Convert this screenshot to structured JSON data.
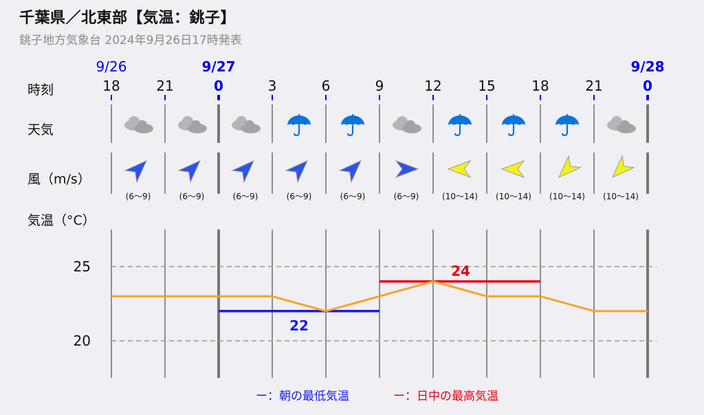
{
  "header": {
    "title": "千葉県／北東部【気温：銚子】",
    "subtitle": "銚子地方気象台 2024年9月26日17時発表"
  },
  "labels": {
    "time": "時刻",
    "weather": "天気",
    "wind": "風（m/s）",
    "temperature": "気温（°C）"
  },
  "legend": {
    "min_label": "ー：朝の最低気温",
    "max_label": "ー：日中の最高気温"
  },
  "colors": {
    "date_blue": "#0000ee",
    "line_orange": "#f5a623",
    "min_blue": "#1a1ae6",
    "max_red": "#e60012",
    "cloud_gray": "#b5b5b5",
    "umbrella_blue": "#0a74d9",
    "wind_blue": "#2d54e8",
    "wind_yellow": "#f2f21a"
  },
  "chart_data": {
    "type": "line",
    "ylim": [
      17.5,
      27.5
    ],
    "yticks": [
      20,
      25
    ],
    "dates": [
      {
        "label": "9/26",
        "hour_index": 0
      },
      {
        "label": "9/27",
        "hour_index": 2
      },
      {
        "label": "9/28",
        "hour_index": 10
      }
    ],
    "hours": [
      "18",
      "21",
      "0",
      "3",
      "6",
      "9",
      "12",
      "15",
      "18",
      "21",
      "0"
    ],
    "weather": [
      "cloud-icon",
      "cloud-icon",
      "cloud-icon",
      "umbrella-icon",
      "umbrella-icon",
      "cloud-icon",
      "umbrella-icon",
      "umbrella-icon",
      "umbrella-icon",
      "cloud-icon"
    ],
    "wind": [
      {
        "range": "(6〜9)",
        "color": "blue",
        "direction_deg": 45
      },
      {
        "range": "(6〜9)",
        "color": "blue",
        "direction_deg": 45
      },
      {
        "range": "(6〜9)",
        "color": "blue",
        "direction_deg": 45
      },
      {
        "range": "(6〜9)",
        "color": "blue",
        "direction_deg": 45
      },
      {
        "range": "(6〜9)",
        "color": "blue",
        "direction_deg": 45
      },
      {
        "range": "(6〜9)",
        "color": "blue",
        "direction_deg": 90
      },
      {
        "range": "(10〜14)",
        "color": "yellow",
        "direction_deg": 270
      },
      {
        "range": "(10〜14)",
        "color": "yellow",
        "direction_deg": 270
      },
      {
        "range": "(10〜14)",
        "color": "yellow",
        "direction_deg": 225
      },
      {
        "range": "(10〜14)",
        "color": "yellow",
        "direction_deg": 225
      }
    ],
    "temperature": [
      23,
      23,
      23,
      23,
      22,
      23,
      24,
      23,
      23,
      22,
      22
    ],
    "min_temp": {
      "value": 22,
      "label": "22",
      "from_index": 2,
      "to_index": 5
    },
    "max_temp": {
      "value": 24,
      "label": "24",
      "from_index": 5,
      "to_index": 8
    }
  }
}
